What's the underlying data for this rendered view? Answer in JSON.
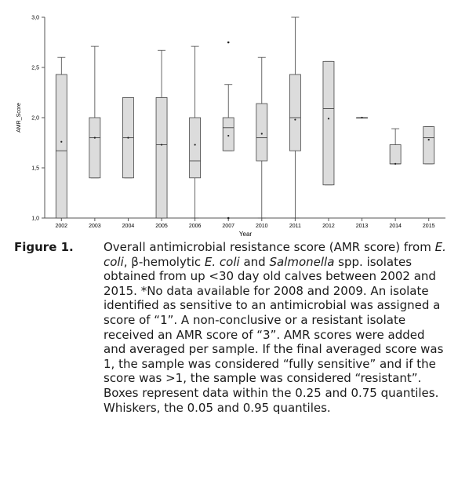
{
  "chart_data": {
    "type": "box",
    "title": "",
    "xlabel": "Year",
    "ylabel": "AMR_Score",
    "ylim": [
      1.0,
      3.0
    ],
    "yticks": [
      1.0,
      1.5,
      2.0,
      2.5,
      3.0
    ],
    "ytick_labels": [
      "1,0",
      "1,5",
      "2,0",
      "2,5",
      "3,0"
    ],
    "categories": [
      "2002",
      "2003",
      "2004",
      "2005",
      "2006",
      "2007",
      "2010",
      "2011",
      "2012",
      "2013",
      "2014",
      "2015"
    ],
    "boxes": [
      {
        "year": "2002",
        "whisker_low": 1.0,
        "q1": 1.0,
        "median": 1.67,
        "q3": 2.43,
        "whisker_high": 2.6,
        "mean": 1.76
      },
      {
        "year": "2003",
        "whisker_low": 1.4,
        "q1": 1.4,
        "median": 1.8,
        "q3": 2.0,
        "whisker_high": 2.71,
        "mean": 1.8
      },
      {
        "year": "2004",
        "whisker_low": 1.4,
        "q1": 1.4,
        "median": 1.8,
        "q3": 2.2,
        "whisker_high": 2.2,
        "mean": 1.8
      },
      {
        "year": "2005",
        "whisker_low": 1.0,
        "q1": 1.0,
        "median": 1.73,
        "q3": 2.2,
        "whisker_high": 2.67,
        "mean": 1.73
      },
      {
        "year": "2006",
        "whisker_low": 1.0,
        "q1": 1.4,
        "median": 1.57,
        "q3": 2.0,
        "whisker_high": 2.71,
        "mean": 1.73
      },
      {
        "year": "2007",
        "whisker_low": 1.67,
        "q1": 1.67,
        "median": 1.9,
        "q3": 2.0,
        "whisker_high": 2.33,
        "mean": 1.82,
        "outliers": [
          2.75,
          1.0
        ]
      },
      {
        "year": "2010",
        "whisker_low": 1.0,
        "q1": 1.57,
        "median": 1.8,
        "q3": 2.14,
        "whisker_high": 2.6,
        "mean": 1.84
      },
      {
        "year": "2011",
        "whisker_low": 1.0,
        "q1": 1.67,
        "median": 2.0,
        "q3": 2.43,
        "whisker_high": 3.0,
        "mean": 1.98
      },
      {
        "year": "2012",
        "whisker_low": 1.33,
        "q1": 1.33,
        "median": 2.09,
        "q3": 2.56,
        "whisker_high": 2.56,
        "mean": 1.99
      },
      {
        "year": "2013",
        "whisker_low": 2.0,
        "q1": 2.0,
        "median": 2.0,
        "q3": 2.0,
        "whisker_high": 2.0,
        "mean": 2.0
      },
      {
        "year": "2014",
        "whisker_low": 1.54,
        "q1": 1.54,
        "median": 1.54,
        "q3": 1.73,
        "whisker_high": 1.89,
        "mean": 1.54
      },
      {
        "year": "2015",
        "whisker_low": 1.54,
        "q1": 1.54,
        "median": 1.8,
        "q3": 1.91,
        "whisker_high": 1.91,
        "mean": 1.78
      }
    ],
    "colors": {
      "box_fill": "#dcdcdc",
      "stroke": "#444444"
    },
    "grid": false,
    "legend": "none"
  },
  "caption": {
    "label": "Figure 1.",
    "parts": [
      {
        "t": "Overall antimicrobial resistance score (AMR score) from "
      },
      {
        "t": "E. coli",
        "i": true
      },
      {
        "t": ", β-hemolytic "
      },
      {
        "t": "E. coli",
        "i": true
      },
      {
        "t": " and "
      },
      {
        "t": "Salmonella",
        "i": true
      },
      {
        "t": " spp. isolates obtained from up <30 day old calves between 2002 and 2015. *No data available for 2008 and 2009. An isolate identified as sensitive to an antimicrobial was assigned a score of “1”. A non-conclusive or a resistant isolate received an AMR score of “3”. AMR scores were added and averaged per sample. If the final averaged score was 1, the sample was considered “fully sensitive” and if the score was >1, the sample was considered “resistant”. Boxes represent data within the 0.25 and 0.75 quantiles. Whiskers, the 0.05 and 0.95 quantiles."
      }
    ]
  }
}
